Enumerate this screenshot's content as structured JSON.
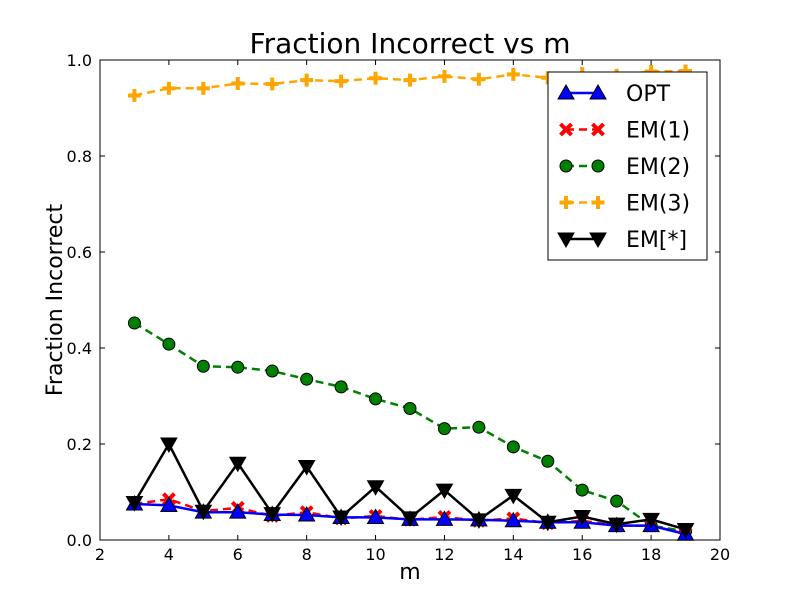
{
  "chart_data": {
    "type": "line",
    "title": "Fraction Incorrect vs m",
    "xlabel": "m",
    "ylabel": "Fraction Incorrect",
    "xlim": [
      2,
      20
    ],
    "ylim": [
      0.0,
      1.0
    ],
    "xticks": [
      2,
      4,
      6,
      8,
      10,
      12,
      14,
      16,
      18,
      20
    ],
    "xtick_labels": [
      "2",
      "4",
      "6",
      "8",
      "10",
      "12",
      "14",
      "16",
      "18",
      "20"
    ],
    "yticks": [
      0.0,
      0.2,
      0.4,
      0.6,
      0.8,
      1.0
    ],
    "ytick_labels": [
      "0.0",
      "0.2",
      "0.4",
      "0.6",
      "0.8",
      "1.0"
    ],
    "grid": false,
    "legend_position": "top-right",
    "x": [
      3,
      4,
      5,
      6,
      7,
      8,
      9,
      10,
      11,
      12,
      13,
      14,
      15,
      16,
      17,
      18,
      19
    ],
    "series": [
      {
        "name": "OPT",
        "color": "#0000ff",
        "linestyle": "solid",
        "marker": "triangle-up",
        "values": [
          0.075,
          0.072,
          0.058,
          0.058,
          0.053,
          0.052,
          0.047,
          0.047,
          0.043,
          0.043,
          0.042,
          0.04,
          0.037,
          0.037,
          0.03,
          0.03,
          0.012
        ]
      },
      {
        "name": "EM(1)",
        "color": "#ff0000",
        "linestyle": "dashed",
        "marker": "x",
        "values": [
          0.075,
          0.085,
          0.06,
          0.067,
          0.05,
          0.058,
          0.045,
          0.05,
          0.042,
          0.048,
          0.04,
          0.045,
          0.035,
          0.04,
          0.03,
          0.03,
          0.013
        ]
      },
      {
        "name": "EM(2)",
        "color": "#008000",
        "linestyle": "dashed",
        "marker": "circle",
        "values": [
          0.452,
          0.408,
          0.362,
          0.36,
          0.352,
          0.335,
          0.319,
          0.294,
          0.274,
          0.232,
          0.235,
          0.194,
          0.164,
          0.104,
          0.081,
          0.03,
          0.018
        ]
      },
      {
        "name": "EM(3)",
        "color": "#ffa500",
        "linestyle": "dashed",
        "marker": "plus",
        "values": [
          0.926,
          0.941,
          0.941,
          0.951,
          0.95,
          0.958,
          0.956,
          0.962,
          0.958,
          0.966,
          0.96,
          0.97,
          0.963,
          0.972,
          0.968,
          0.976,
          0.977
        ]
      },
      {
        "name": "EM[*]",
        "color": "#000000",
        "linestyle": "solid",
        "marker": "triangle-down",
        "values": [
          0.078,
          0.2,
          0.06,
          0.16,
          0.055,
          0.153,
          0.048,
          0.111,
          0.046,
          0.104,
          0.042,
          0.093,
          0.037,
          0.049,
          0.033,
          0.043,
          0.022
        ]
      }
    ]
  }
}
